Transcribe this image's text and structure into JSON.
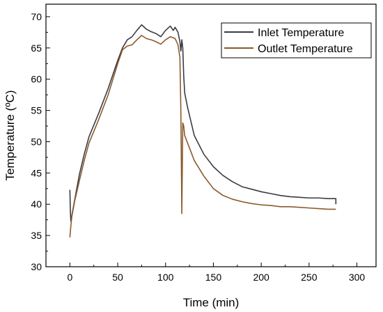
{
  "chart_data": {
    "type": "line",
    "xlabel": "Time (min)",
    "ylabel": "Temperature (ºC)",
    "xlim": [
      -25,
      320
    ],
    "ylim": [
      30,
      72
    ],
    "x_ticks": [
      0,
      50,
      100,
      150,
      200,
      250,
      300
    ],
    "y_ticks": [
      30,
      35,
      40,
      45,
      50,
      55,
      60,
      65,
      70
    ],
    "grid": false,
    "legend_position": "top-right",
    "colors": {
      "inlet": "#3a3a44",
      "outlet": "#8b5a2b"
    },
    "series": [
      {
        "name": "Inlet Temperature",
        "points": [
          [
            0,
            42.3
          ],
          [
            0.5,
            39.0
          ],
          [
            1,
            37.3
          ],
          [
            3,
            39.0
          ],
          [
            6,
            41.5
          ],
          [
            10,
            44.8
          ],
          [
            15,
            48.0
          ],
          [
            20,
            50.8
          ],
          [
            30,
            54.5
          ],
          [
            40,
            58.5
          ],
          [
            50,
            63.0
          ],
          [
            55,
            65.0
          ],
          [
            60,
            66.3
          ],
          [
            65,
            66.8
          ],
          [
            70,
            67.8
          ],
          [
            75,
            68.7
          ],
          [
            80,
            68.0
          ],
          [
            85,
            67.6
          ],
          [
            90,
            67.3
          ],
          [
            95,
            66.8
          ],
          [
            100,
            67.8
          ],
          [
            105,
            68.5
          ],
          [
            108,
            67.8
          ],
          [
            110,
            68.3
          ],
          [
            113,
            67.5
          ],
          [
            115,
            66.0
          ],
          [
            116,
            64.5
          ],
          [
            117,
            66.3
          ],
          [
            118,
            65.0
          ],
          [
            119,
            60.5
          ],
          [
            120,
            57.8
          ],
          [
            123,
            55.5
          ],
          [
            130,
            51.0
          ],
          [
            140,
            48.0
          ],
          [
            150,
            46.0
          ],
          [
            160,
            44.6
          ],
          [
            170,
            43.6
          ],
          [
            180,
            42.8
          ],
          [
            190,
            42.4
          ],
          [
            200,
            42.0
          ],
          [
            210,
            41.7
          ],
          [
            220,
            41.4
          ],
          [
            230,
            41.2
          ],
          [
            240,
            41.1
          ],
          [
            250,
            41.0
          ],
          [
            260,
            41.0
          ],
          [
            270,
            40.9
          ],
          [
            278,
            40.9
          ],
          [
            278,
            40.0
          ]
        ]
      },
      {
        "name": "Outlet Temperature",
        "points": [
          [
            0,
            34.7
          ],
          [
            1,
            36.5
          ],
          [
            2,
            38.0
          ],
          [
            5,
            40.5
          ],
          [
            10,
            43.8
          ],
          [
            15,
            47.0
          ],
          [
            20,
            49.8
          ],
          [
            30,
            53.5
          ],
          [
            40,
            57.5
          ],
          [
            50,
            62.5
          ],
          [
            55,
            64.7
          ],
          [
            60,
            65.3
          ],
          [
            65,
            65.5
          ],
          [
            70,
            66.3
          ],
          [
            75,
            67.0
          ],
          [
            80,
            66.5
          ],
          [
            85,
            66.3
          ],
          [
            90,
            66.0
          ],
          [
            95,
            65.6
          ],
          [
            100,
            66.3
          ],
          [
            105,
            66.8
          ],
          [
            110,
            66.5
          ],
          [
            113,
            65.5
          ],
          [
            115,
            63.5
          ],
          [
            116,
            55.0
          ],
          [
            117,
            38.5
          ],
          [
            118,
            53.0
          ],
          [
            119,
            52.5
          ],
          [
            120,
            51.0
          ],
          [
            125,
            49.0
          ],
          [
            130,
            47.0
          ],
          [
            140,
            44.5
          ],
          [
            150,
            42.5
          ],
          [
            160,
            41.4
          ],
          [
            170,
            40.8
          ],
          [
            180,
            40.4
          ],
          [
            190,
            40.1
          ],
          [
            200,
            39.9
          ],
          [
            210,
            39.8
          ],
          [
            220,
            39.6
          ],
          [
            230,
            39.6
          ],
          [
            240,
            39.5
          ],
          [
            250,
            39.4
          ],
          [
            260,
            39.3
          ],
          [
            270,
            39.2
          ],
          [
            278,
            39.2
          ]
        ]
      }
    ]
  }
}
